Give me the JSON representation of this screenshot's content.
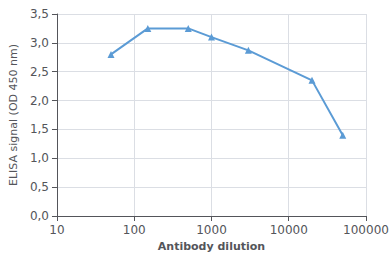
{
  "chart_data": {
    "type": "line",
    "x": [
      50,
      150,
      500,
      1000,
      3000,
      20000,
      50000
    ],
    "values": [
      2.8,
      3.25,
      3.25,
      3.1,
      2.87,
      2.35,
      1.4
    ],
    "color": "#5b9bd5",
    "marker": "triangle",
    "xlabel": "Antibody dilution",
    "ylabel": "ELISA signal (OD 450 nm)",
    "log": "x",
    "xlim": [
      10,
      100000
    ],
    "ylim": [
      0.0,
      3.5
    ],
    "xticks": [
      10,
      100,
      1000,
      10000,
      100000
    ],
    "yticks": [
      {
        "value": 0.0,
        "label": "0,0"
      },
      {
        "value": 0.5,
        "label": "0,5"
      },
      {
        "value": 1.0,
        "label": "1,0"
      },
      {
        "value": 1.5,
        "label": "1,5"
      },
      {
        "value": 2.0,
        "label": "2,0"
      },
      {
        "value": 2.5,
        "label": "2,5"
      },
      {
        "value": 3.0,
        "label": "3,0"
      },
      {
        "value": 3.5,
        "label": "3,5"
      }
    ],
    "grid": true
  }
}
